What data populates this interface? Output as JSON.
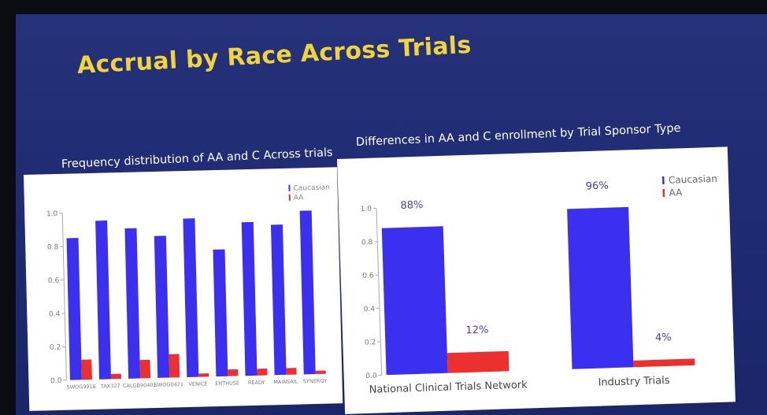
{
  "slide": {
    "title": "Accrual by Race Across Trials",
    "colors": {
      "background": "#22307a",
      "title": "#f2d43a",
      "caucasian": "#3b2ff0",
      "aa": "#ec2f2f"
    }
  },
  "chart_data": [
    {
      "type": "bar",
      "title": "Frequency distribution of AA and C Across trials",
      "categories": [
        "SWOG9916",
        "TAX327",
        "CALGB90401",
        "SWOG0421",
        "VENICE",
        "ENTHUSE",
        "READY",
        "MAINSAIL",
        "SYNERGY"
      ],
      "series": [
        {
          "name": "Caucasian",
          "values": [
            0.85,
            0.95,
            0.9,
            0.85,
            0.95,
            0.76,
            0.92,
            0.9,
            0.98
          ]
        },
        {
          "name": "AA",
          "values": [
            0.12,
            0.03,
            0.11,
            0.14,
            0.02,
            0.04,
            0.04,
            0.04,
            0.02
          ]
        }
      ],
      "yticks": [
        "0.0",
        "0.2",
        "0.4",
        "0.6",
        "0.8",
        "1.0"
      ],
      "ylim": [
        0,
        1.0
      ],
      "legend": "top-right"
    },
    {
      "type": "bar",
      "title": "Differences in AA and C enrollment by Trial Sponsor Type",
      "categories": [
        "National Clinical Trials Network",
        "Industry Trials"
      ],
      "series": [
        {
          "name": "Caucasian",
          "values": [
            0.88,
            0.96
          ],
          "labels": [
            "88%",
            "96%"
          ]
        },
        {
          "name": "AA",
          "values": [
            0.12,
            0.04
          ],
          "labels": [
            "12%",
            "4%"
          ]
        }
      ],
      "yticks": [
        "0.0",
        "0.2",
        "0.4",
        "0.6",
        "0.8",
        "1.0"
      ],
      "ylim": [
        0,
        1.0
      ],
      "legend": "top-right"
    }
  ]
}
